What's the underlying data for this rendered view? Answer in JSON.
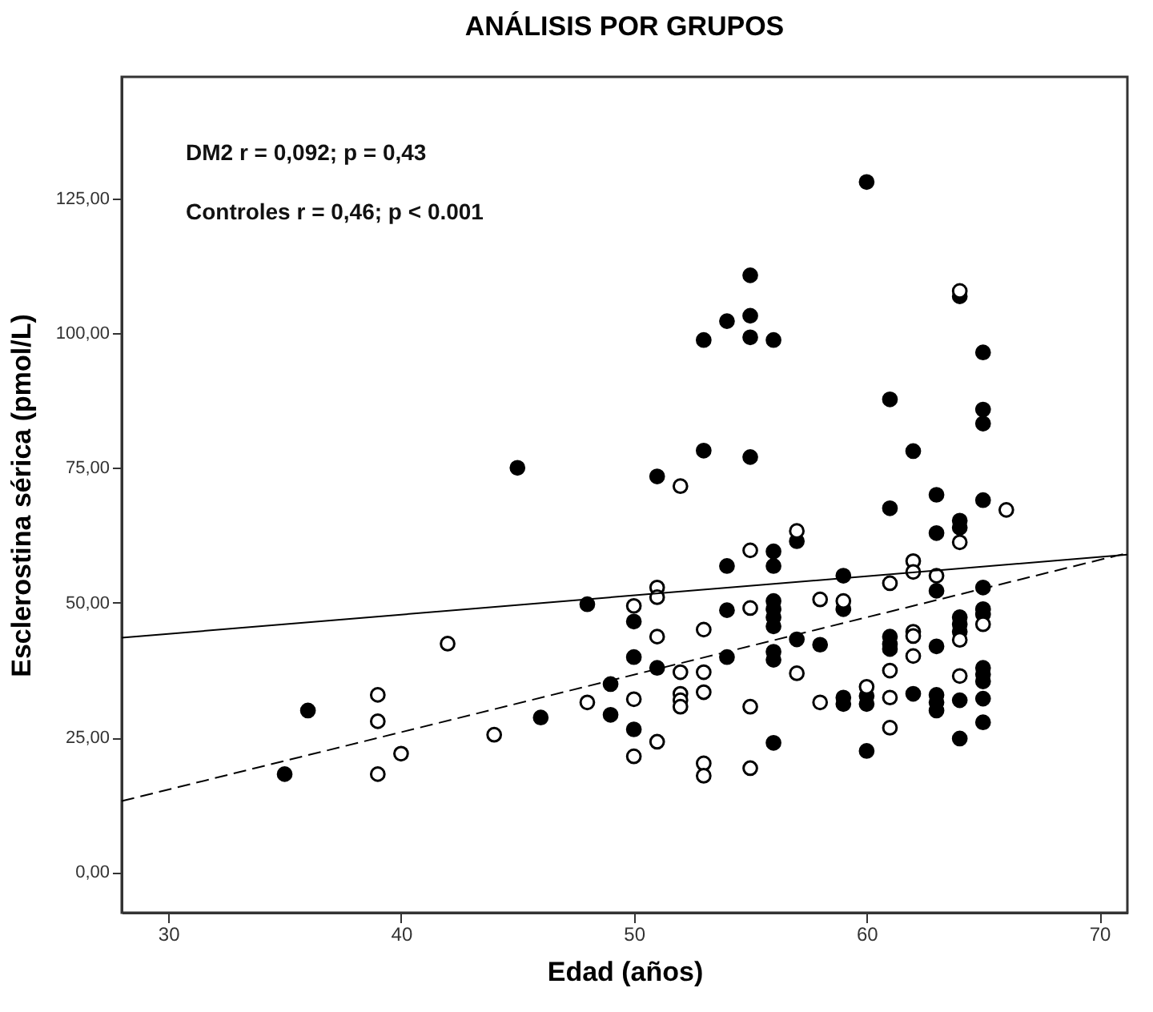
{
  "chart_data": {
    "type": "scatter",
    "title": "ANÁLISIS POR GRUPOS",
    "xlabel": "Edad (años)",
    "ylabel": "Esclerostina sérica (pmol/L)",
    "annotations": [
      "DM2 r = 0,092; p = 0,43",
      "Controles r = 0,46; p < 0.001"
    ],
    "xlim": [
      28,
      71.2
    ],
    "xticks": [
      30,
      40,
      50,
      60,
      70
    ],
    "ylim": [
      -7.5,
      147.5
    ],
    "yticks": [
      {
        "value": 0,
        "label": "0,00"
      },
      {
        "value": 25,
        "label": "25,00"
      },
      {
        "value": 50,
        "label": "50,00"
      },
      {
        "value": 75,
        "label": "75,00"
      },
      {
        "value": 100,
        "label": "100,00"
      },
      {
        "value": 125,
        "label": "125,00"
      }
    ],
    "grid": false,
    "series": [
      {
        "color": "#000000",
        "marker": "circle",
        "x": [
          35,
          36,
          45,
          46,
          48,
          49,
          49,
          50,
          50,
          50,
          51,
          51,
          53,
          53,
          54,
          54,
          54,
          54,
          55,
          55,
          55,
          55,
          56,
          56,
          56,
          56,
          56,
          56,
          56,
          56,
          56,
          56,
          57,
          57,
          58,
          59,
          59,
          59,
          59,
          60,
          60,
          60,
          60,
          61,
          61,
          61,
          61,
          61,
          62,
          62,
          63,
          63,
          63,
          63,
          63,
          63,
          63,
          64,
          64,
          64,
          64,
          64,
          64,
          64,
          64,
          65,
          65,
          65,
          65,
          65,
          65,
          65,
          65,
          65,
          65,
          65,
          65
        ],
        "values": [
          18.2,
          30,
          75,
          28.7,
          49.7,
          34.9,
          29.2,
          46.5,
          39.9,
          26.5,
          73.4,
          37.9,
          98.7,
          78.2,
          102.2,
          48.6,
          39.9,
          56.8,
          110.7,
          103.2,
          99.2,
          77,
          98.7,
          59.5,
          56.8,
          50.3,
          48.8,
          47.3,
          45.6,
          40.9,
          39.4,
          24,
          61.4,
          43.2,
          42.2,
          55,
          48.8,
          32.4,
          31.2,
          128,
          32.7,
          31.2,
          22.5,
          87.7,
          67.5,
          43.7,
          42.3,
          41.4,
          78.1,
          33.1,
          70,
          62.9,
          52.2,
          41.9,
          32.9,
          31.5,
          30,
          106.8,
          65.2,
          63.9,
          47.3,
          46,
          44.6,
          31.9,
          24.8,
          96.4,
          85.8,
          83.2,
          69,
          52.8,
          48.8,
          47.8,
          37.9,
          36.7,
          35.4,
          32.2,
          27.8
        ]
      },
      {
        "color": "#ffffff",
        "marker": "circle",
        "x": [
          39,
          39,
          39,
          40,
          42,
          44,
          48,
          50,
          50,
          50,
          51,
          51,
          51,
          51,
          52,
          52,
          52,
          52,
          52,
          53,
          53,
          53,
          53,
          53,
          55,
          55,
          55,
          55,
          57,
          57,
          58,
          58,
          59,
          60,
          61,
          61,
          61,
          61,
          62,
          62,
          62,
          62,
          62,
          63,
          64,
          64,
          64,
          64,
          65,
          66
        ],
        "values": [
          32.9,
          28,
          18.2,
          22,
          42.4,
          25.5,
          31.5,
          49.4,
          32.1,
          21.5,
          52.8,
          51,
          43.7,
          24.2,
          71.6,
          37.1,
          33.1,
          31.9,
          30.7,
          45,
          37.1,
          33.4,
          20.2,
          17.9,
          59.7,
          49,
          30.7,
          19.3,
          63.3,
          36.9,
          50.6,
          31.5,
          50.3,
          34.4,
          53.6,
          37.4,
          32.4,
          26.8,
          57.7,
          55.7,
          44.6,
          43.8,
          40.1,
          55,
          107.8,
          61.2,
          43.1,
          36.4,
          46,
          67.2
        ]
      },
      {
        "type": "line",
        "color": "#000000",
        "marker": "none",
        "line_style": "solid",
        "x": [
          28,
          71.2
        ],
        "values": [
          43.5,
          58.9
        ]
      },
      {
        "type": "line",
        "color": "#000000",
        "marker": "none",
        "line_style": "dashed",
        "x": [
          28,
          71.2
        ],
        "values": [
          13.2,
          59.2
        ]
      }
    ]
  }
}
